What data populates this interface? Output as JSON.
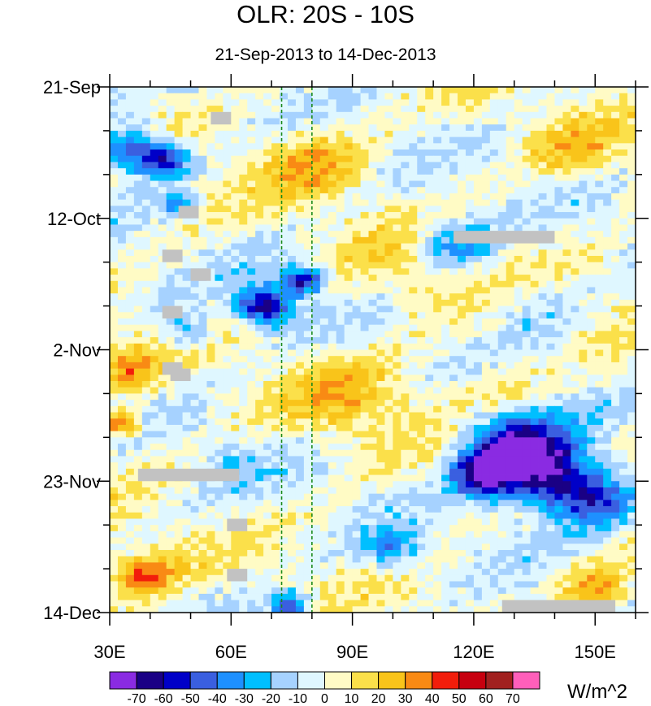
{
  "chart_data": {
    "type": "heatmap",
    "title": "OLR: 20S - 10S",
    "subtitle": "21-Sep-2013 to 14-Dec-2013",
    "x_axis": {
      "range": [
        30,
        160
      ],
      "ticks": [
        30,
        60,
        90,
        120,
        150
      ],
      "tick_labels": [
        "30E",
        "60E",
        "90E",
        "120E",
        "150E"
      ]
    },
    "y_axis": {
      "range_days": [
        0,
        84
      ],
      "ticks_days": [
        0,
        21,
        42,
        63,
        84
      ],
      "tick_labels": [
        "21-Sep",
        "12-Oct",
        "2-Nov",
        "23-Nov",
        "14-Dec"
      ]
    },
    "reference_lines_lon": [
      72.5,
      80
    ],
    "colorbar": {
      "units": "W/m^2",
      "levels": [
        -70,
        -60,
        -50,
        -40,
        -30,
        -20,
        -10,
        0,
        10,
        20,
        30,
        40,
        50,
        60,
        70
      ],
      "level_labels": [
        "-70",
        "-60",
        "-50",
        "-40",
        "-30",
        "-20",
        "-10",
        "0",
        "10",
        "20",
        "30",
        "40",
        "50",
        "60",
        "70"
      ],
      "colors": [
        "#8a2be2",
        "#1a0085",
        "#0000c8",
        "#3a5fe0",
        "#1e90ff",
        "#00bfff",
        "#a6d2ff",
        "#dff7ff",
        "#fffbc5",
        "#fbe04a",
        "#f9c41a",
        "#f98a14",
        "#f21d0b",
        "#c7000f",
        "#a1201f",
        "#ff5fba"
      ]
    },
    "missing_color": "#c2c2c2",
    "anomalies": [
      {
        "lon": 36,
        "day": 10,
        "value": -55,
        "r": 8
      },
      {
        "lon": 44,
        "day": 12,
        "value": -45,
        "r": 6
      },
      {
        "lon": 47,
        "day": 19,
        "value": -35,
        "r": 4
      },
      {
        "lon": 115,
        "day": 25,
        "value": -40,
        "r": 9
      },
      {
        "lon": 78,
        "day": 31,
        "value": -60,
        "r": 5
      },
      {
        "lon": 68,
        "day": 35,
        "value": -65,
        "r": 7
      },
      {
        "lon": 50,
        "day": 39,
        "value": -30,
        "r": 6
      },
      {
        "lon": 35,
        "day": 45,
        "value": 30,
        "r": 7
      },
      {
        "lon": 33,
        "day": 54,
        "value": 45,
        "r": 5
      },
      {
        "lon": 38,
        "day": 78,
        "value": 40,
        "r": 8
      },
      {
        "lon": 130,
        "day": 57,
        "value": -60,
        "r": 12
      },
      {
        "lon": 138,
        "day": 62,
        "value": -65,
        "r": 12
      },
      {
        "lon": 150,
        "day": 66,
        "value": -45,
        "r": 10
      },
      {
        "lon": 122,
        "day": 62,
        "value": -55,
        "r": 8
      },
      {
        "lon": 100,
        "day": 74,
        "value": -30,
        "r": 7
      },
      {
        "lon": 75,
        "day": 83,
        "value": -50,
        "r": 5
      },
      {
        "lon": 80,
        "day": 12,
        "value": 25,
        "r": 12
      },
      {
        "lon": 90,
        "day": 50,
        "value": 22,
        "r": 14
      },
      {
        "lon": 105,
        "day": 30,
        "value": 15,
        "r": 15
      },
      {
        "lon": 145,
        "day": 10,
        "value": 20,
        "r": 10
      },
      {
        "lon": 150,
        "day": 80,
        "value": 30,
        "r": 8
      },
      {
        "lon": 60,
        "day": 60,
        "value": -15,
        "r": 8
      },
      {
        "lon": 135,
        "day": 35,
        "value": -15,
        "r": 10
      },
      {
        "lon": 125,
        "day": 48,
        "value": 15,
        "r": 10
      }
    ]
  }
}
